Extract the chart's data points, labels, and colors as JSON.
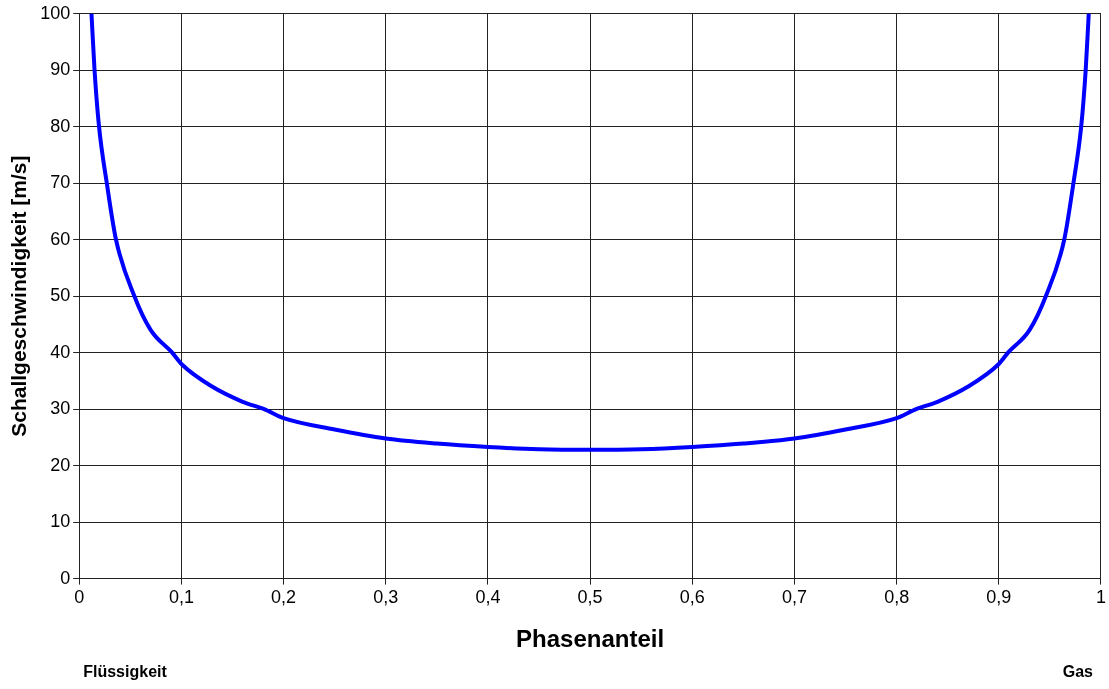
{
  "chart_data": {
    "type": "line",
    "xlabel": "Phasenanteil",
    "ylabel": "Schallgeschwindigkeit [m/s]",
    "annotations": [
      "Flüssigkeit",
      "Gas"
    ],
    "x": [
      0.012,
      0.015,
      0.0194,
      0.027,
      0.036,
      0.054,
      0.07,
      0.091,
      0.1,
      0.13,
      0.16,
      0.181,
      0.2,
      0.25,
      0.3,
      0.35,
      0.4,
      0.45,
      0.5,
      0.55,
      0.6,
      0.65,
      0.7,
      0.75,
      0.8,
      0.819,
      0.84,
      0.87,
      0.9,
      0.909,
      0.93,
      0.946,
      0.964,
      0.973,
      0.9806,
      0.985,
      0.988
    ],
    "series": [
      {
        "color": "#0000ff",
        "values": [
          100,
          90,
          80,
          70,
          60,
          50,
          44,
          40,
          38,
          34,
          31.3,
          30,
          28.4,
          26.4,
          24.8,
          23.9,
          23.3,
          22.9,
          22.8,
          22.9,
          23.3,
          23.9,
          24.8,
          26.4,
          28.4,
          30,
          31.3,
          34,
          38,
          40,
          44,
          50,
          60,
          70,
          80,
          90,
          100
        ]
      }
    ],
    "xlim": [
      0,
      1
    ],
    "xticks": [
      0,
      {
        "value": 0.1,
        "label": "0,1"
      },
      {
        "value": 0.2,
        "label": "0,2"
      },
      {
        "value": 0.3,
        "label": "0,3"
      },
      {
        "value": 0.4,
        "label": "0,4"
      },
      {
        "value": 0.5,
        "label": "0,5"
      },
      {
        "value": 0.6,
        "label": "0,6"
      },
      {
        "value": 0.7,
        "label": "0,7"
      },
      {
        "value": 0.8,
        "label": "0,8"
      },
      {
        "value": 0.9,
        "label": "0,9"
      },
      1
    ],
    "ylim": [
      0,
      100
    ],
    "yticks": [
      0,
      10,
      20,
      30,
      40,
      50,
      60,
      70,
      80,
      90,
      100
    ],
    "grid": true,
    "legend": false,
    "marker": "none",
    "line_style": "solid"
  }
}
